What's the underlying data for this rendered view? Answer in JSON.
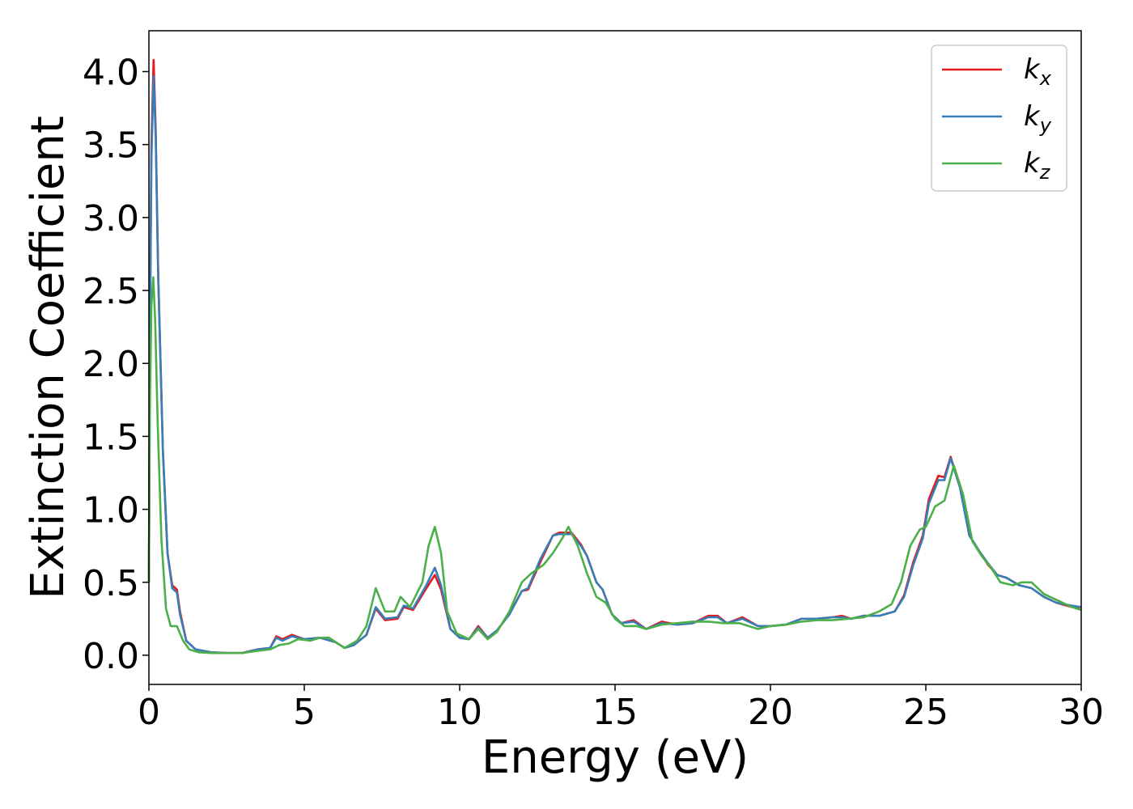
{
  "chart_data": {
    "type": "line",
    "xlabel": "Energy (eV)",
    "ylabel": "Extinction Coefficient",
    "xlim": [
      0,
      30
    ],
    "ylim": [
      -0.2,
      4.28
    ],
    "xticks": [
      0,
      5,
      10,
      15,
      20,
      25,
      30
    ],
    "yticks": [
      0.0,
      0.5,
      1.0,
      1.5,
      2.0,
      2.5,
      3.0,
      3.5,
      4.0
    ],
    "grid": false,
    "legend_position": "top-right",
    "series": [
      {
        "name": "k_x",
        "label_base": "k",
        "label_sub": "x",
        "color": "#e41a1c",
        "points": [
          [
            0,
            0.5
          ],
          [
            0.03,
            2.2
          ],
          [
            0.08,
            3.5
          ],
          [
            0.15,
            4.08
          ],
          [
            0.22,
            3.6
          ],
          [
            0.3,
            2.6
          ],
          [
            0.45,
            1.4
          ],
          [
            0.6,
            0.7
          ],
          [
            0.75,
            0.48
          ],
          [
            0.9,
            0.45
          ],
          [
            1.0,
            0.3
          ],
          [
            1.2,
            0.1
          ],
          [
            1.5,
            0.04
          ],
          [
            2.0,
            0.02
          ],
          [
            2.5,
            0.015
          ],
          [
            3.0,
            0.015
          ],
          [
            3.5,
            0.04
          ],
          [
            3.9,
            0.05
          ],
          [
            4.1,
            0.13
          ],
          [
            4.3,
            0.11
          ],
          [
            4.6,
            0.14
          ],
          [
            5.0,
            0.11
          ],
          [
            5.5,
            0.12
          ],
          [
            6.0,
            0.09
          ],
          [
            6.3,
            0.05
          ],
          [
            6.6,
            0.07
          ],
          [
            7.0,
            0.14
          ],
          [
            7.3,
            0.32
          ],
          [
            7.6,
            0.24
          ],
          [
            8.0,
            0.25
          ],
          [
            8.2,
            0.33
          ],
          [
            8.5,
            0.31
          ],
          [
            8.9,
            0.45
          ],
          [
            9.2,
            0.55
          ],
          [
            9.4,
            0.45
          ],
          [
            9.7,
            0.18
          ],
          [
            10.0,
            0.12
          ],
          [
            10.3,
            0.11
          ],
          [
            10.6,
            0.2
          ],
          [
            10.9,
            0.12
          ],
          [
            11.2,
            0.17
          ],
          [
            11.6,
            0.28
          ],
          [
            12.0,
            0.44
          ],
          [
            12.2,
            0.45
          ],
          [
            12.6,
            0.64
          ],
          [
            13.0,
            0.82
          ],
          [
            13.2,
            0.84
          ],
          [
            13.6,
            0.84
          ],
          [
            13.9,
            0.76
          ],
          [
            14.1,
            0.68
          ],
          [
            14.4,
            0.5
          ],
          [
            14.6,
            0.45
          ],
          [
            14.9,
            0.28
          ],
          [
            15.2,
            0.22
          ],
          [
            15.6,
            0.24
          ],
          [
            16.0,
            0.18
          ],
          [
            16.5,
            0.23
          ],
          [
            17.0,
            0.21
          ],
          [
            17.5,
            0.22
          ],
          [
            18.0,
            0.27
          ],
          [
            18.3,
            0.27
          ],
          [
            18.6,
            0.22
          ],
          [
            19.1,
            0.26
          ],
          [
            19.6,
            0.2
          ],
          [
            20.0,
            0.2
          ],
          [
            20.5,
            0.21
          ],
          [
            21.0,
            0.25
          ],
          [
            21.5,
            0.25
          ],
          [
            22.0,
            0.26
          ],
          [
            22.3,
            0.27
          ],
          [
            22.6,
            0.25
          ],
          [
            23.0,
            0.27
          ],
          [
            23.5,
            0.27
          ],
          [
            24.0,
            0.3
          ],
          [
            24.3,
            0.41
          ],
          [
            24.6,
            0.64
          ],
          [
            24.9,
            0.82
          ],
          [
            25.1,
            1.07
          ],
          [
            25.4,
            1.23
          ],
          [
            25.6,
            1.22
          ],
          [
            25.8,
            1.36
          ],
          [
            26.1,
            1.15
          ],
          [
            26.4,
            0.82
          ],
          [
            26.7,
            0.72
          ],
          [
            27.0,
            0.62
          ],
          [
            27.3,
            0.55
          ],
          [
            27.6,
            0.53
          ],
          [
            28.0,
            0.48
          ],
          [
            28.4,
            0.46
          ],
          [
            28.8,
            0.4
          ],
          [
            29.2,
            0.36
          ],
          [
            29.7,
            0.33
          ],
          [
            30.0,
            0.33
          ]
        ]
      },
      {
        "name": "k_y",
        "label_base": "k",
        "label_sub": "y",
        "color": "#377eb8",
        "points": [
          [
            0,
            0.5
          ],
          [
            0.03,
            2.1
          ],
          [
            0.08,
            3.4
          ],
          [
            0.15,
            3.97
          ],
          [
            0.22,
            3.55
          ],
          [
            0.3,
            2.6
          ],
          [
            0.45,
            1.4
          ],
          [
            0.6,
            0.7
          ],
          [
            0.75,
            0.46
          ],
          [
            0.9,
            0.43
          ],
          [
            1.0,
            0.28
          ],
          [
            1.2,
            0.1
          ],
          [
            1.5,
            0.04
          ],
          [
            2.0,
            0.02
          ],
          [
            2.5,
            0.015
          ],
          [
            3.0,
            0.015
          ],
          [
            3.5,
            0.04
          ],
          [
            3.9,
            0.05
          ],
          [
            4.1,
            0.12
          ],
          [
            4.3,
            0.1
          ],
          [
            4.6,
            0.13
          ],
          [
            5.0,
            0.11
          ],
          [
            5.5,
            0.12
          ],
          [
            6.0,
            0.09
          ],
          [
            6.3,
            0.05
          ],
          [
            6.6,
            0.07
          ],
          [
            7.0,
            0.14
          ],
          [
            7.3,
            0.33
          ],
          [
            7.6,
            0.25
          ],
          [
            8.0,
            0.26
          ],
          [
            8.2,
            0.34
          ],
          [
            8.5,
            0.32
          ],
          [
            8.9,
            0.47
          ],
          [
            9.2,
            0.6
          ],
          [
            9.4,
            0.48
          ],
          [
            9.7,
            0.18
          ],
          [
            10.0,
            0.12
          ],
          [
            10.3,
            0.11
          ],
          [
            10.6,
            0.19
          ],
          [
            10.9,
            0.12
          ],
          [
            11.2,
            0.17
          ],
          [
            11.6,
            0.28
          ],
          [
            12.0,
            0.44
          ],
          [
            12.2,
            0.46
          ],
          [
            12.6,
            0.66
          ],
          [
            13.0,
            0.82
          ],
          [
            13.2,
            0.83
          ],
          [
            13.6,
            0.83
          ],
          [
            13.9,
            0.75
          ],
          [
            14.1,
            0.68
          ],
          [
            14.4,
            0.5
          ],
          [
            14.6,
            0.45
          ],
          [
            14.9,
            0.28
          ],
          [
            15.2,
            0.22
          ],
          [
            15.6,
            0.23
          ],
          [
            16.0,
            0.18
          ],
          [
            16.5,
            0.22
          ],
          [
            17.0,
            0.21
          ],
          [
            17.5,
            0.22
          ],
          [
            18.0,
            0.26
          ],
          [
            18.3,
            0.26
          ],
          [
            18.6,
            0.22
          ],
          [
            19.1,
            0.25
          ],
          [
            19.6,
            0.2
          ],
          [
            20.0,
            0.2
          ],
          [
            20.5,
            0.21
          ],
          [
            21.0,
            0.25
          ],
          [
            21.5,
            0.25
          ],
          [
            22.0,
            0.26
          ],
          [
            22.3,
            0.26
          ],
          [
            22.6,
            0.25
          ],
          [
            23.0,
            0.27
          ],
          [
            23.5,
            0.27
          ],
          [
            24.0,
            0.3
          ],
          [
            24.3,
            0.4
          ],
          [
            24.6,
            0.62
          ],
          [
            24.9,
            0.8
          ],
          [
            25.1,
            1.04
          ],
          [
            25.4,
            1.2
          ],
          [
            25.6,
            1.2
          ],
          [
            25.8,
            1.35
          ],
          [
            26.1,
            1.15
          ],
          [
            26.4,
            0.82
          ],
          [
            26.7,
            0.72
          ],
          [
            27.0,
            0.63
          ],
          [
            27.3,
            0.55
          ],
          [
            27.6,
            0.53
          ],
          [
            28.0,
            0.48
          ],
          [
            28.4,
            0.46
          ],
          [
            28.8,
            0.4
          ],
          [
            29.2,
            0.36
          ],
          [
            29.7,
            0.34
          ],
          [
            30.0,
            0.33
          ]
        ]
      },
      {
        "name": "k_z",
        "label_base": "k",
        "label_sub": "z",
        "color": "#4daf4a",
        "points": [
          [
            0,
            0.5
          ],
          [
            0.03,
            1.7
          ],
          [
            0.08,
            2.4
          ],
          [
            0.14,
            2.59
          ],
          [
            0.2,
            2.3
          ],
          [
            0.28,
            1.6
          ],
          [
            0.4,
            0.8
          ],
          [
            0.55,
            0.32
          ],
          [
            0.7,
            0.2
          ],
          [
            0.9,
            0.2
          ],
          [
            1.1,
            0.1
          ],
          [
            1.3,
            0.04
          ],
          [
            1.6,
            0.02
          ],
          [
            2.0,
            0.015
          ],
          [
            3.0,
            0.015
          ],
          [
            3.5,
            0.03
          ],
          [
            3.9,
            0.04
          ],
          [
            4.2,
            0.07
          ],
          [
            4.5,
            0.08
          ],
          [
            4.8,
            0.11
          ],
          [
            5.2,
            0.1
          ],
          [
            5.5,
            0.12
          ],
          [
            5.8,
            0.12
          ],
          [
            6.3,
            0.05
          ],
          [
            6.7,
            0.1
          ],
          [
            7.0,
            0.2
          ],
          [
            7.3,
            0.46
          ],
          [
            7.6,
            0.3
          ],
          [
            7.9,
            0.3
          ],
          [
            8.1,
            0.4
          ],
          [
            8.4,
            0.33
          ],
          [
            8.8,
            0.5
          ],
          [
            9.0,
            0.75
          ],
          [
            9.2,
            0.88
          ],
          [
            9.4,
            0.7
          ],
          [
            9.6,
            0.3
          ],
          [
            9.9,
            0.15
          ],
          [
            10.3,
            0.11
          ],
          [
            10.6,
            0.18
          ],
          [
            10.9,
            0.11
          ],
          [
            11.2,
            0.16
          ],
          [
            11.6,
            0.3
          ],
          [
            12.0,
            0.5
          ],
          [
            12.3,
            0.56
          ],
          [
            12.7,
            0.62
          ],
          [
            13.0,
            0.7
          ],
          [
            13.3,
            0.8
          ],
          [
            13.5,
            0.88
          ],
          [
            13.8,
            0.75
          ],
          [
            14.1,
            0.56
          ],
          [
            14.4,
            0.4
          ],
          [
            14.7,
            0.36
          ],
          [
            15.0,
            0.25
          ],
          [
            15.3,
            0.2
          ],
          [
            15.7,
            0.2
          ],
          [
            16.0,
            0.18
          ],
          [
            16.5,
            0.21
          ],
          [
            17.0,
            0.22
          ],
          [
            17.5,
            0.23
          ],
          [
            18.0,
            0.23
          ],
          [
            18.5,
            0.22
          ],
          [
            19.0,
            0.22
          ],
          [
            19.6,
            0.18
          ],
          [
            20.0,
            0.2
          ],
          [
            20.5,
            0.21
          ],
          [
            21.0,
            0.23
          ],
          [
            21.5,
            0.24
          ],
          [
            22.0,
            0.24
          ],
          [
            22.5,
            0.25
          ],
          [
            23.0,
            0.26
          ],
          [
            23.5,
            0.3
          ],
          [
            23.9,
            0.35
          ],
          [
            24.2,
            0.5
          ],
          [
            24.5,
            0.75
          ],
          [
            24.8,
            0.86
          ],
          [
            25.0,
            0.88
          ],
          [
            25.3,
            1.02
          ],
          [
            25.6,
            1.06
          ],
          [
            25.9,
            1.3
          ],
          [
            26.2,
            1.1
          ],
          [
            26.5,
            0.78
          ],
          [
            26.8,
            0.68
          ],
          [
            27.1,
            0.6
          ],
          [
            27.4,
            0.5
          ],
          [
            27.8,
            0.48
          ],
          [
            28.1,
            0.5
          ],
          [
            28.4,
            0.5
          ],
          [
            28.8,
            0.42
          ],
          [
            29.2,
            0.38
          ],
          [
            29.7,
            0.33
          ],
          [
            30.0,
            0.31
          ]
        ]
      }
    ]
  }
}
